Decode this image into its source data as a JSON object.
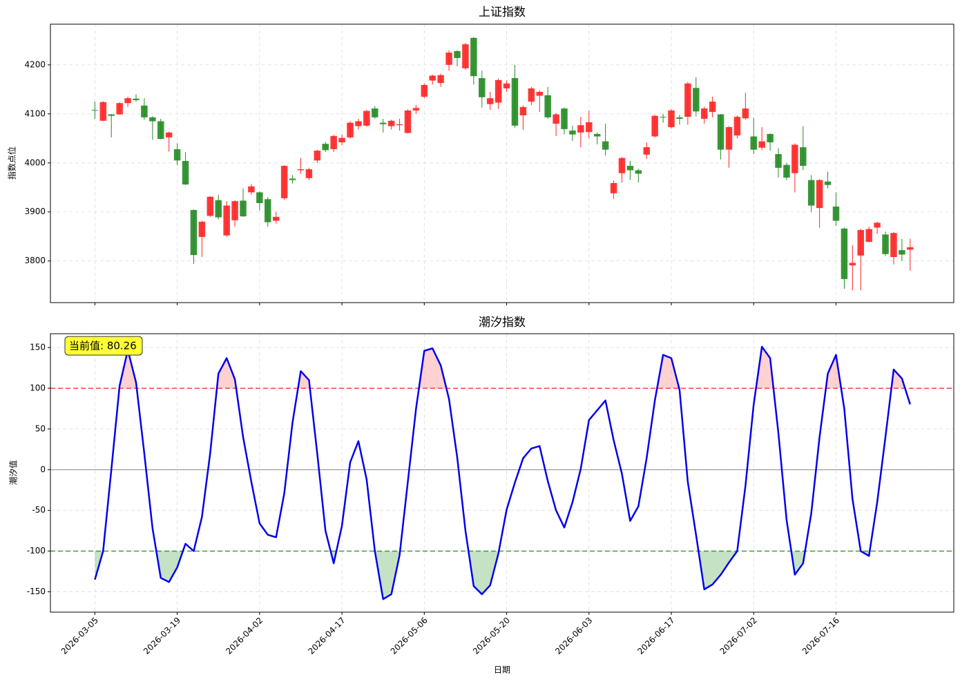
{
  "chart_data": [
    {
      "type": "candlestick",
      "title": "上证指数",
      "ylabel": "指数点位",
      "ylim": [
        3715,
        4283
      ],
      "yticks": [
        3800,
        3900,
        4000,
        4100,
        4200
      ],
      "grid": true,
      "up_color": "#ff2222",
      "down_color": "#228b22",
      "open": [
        4108,
        4086,
        4099,
        4099,
        4122,
        4131,
        4117,
        4093,
        4085,
        4052,
        4028,
        4004,
        3904,
        3849,
        3892,
        3924,
        3852,
        3883,
        3923,
        3940,
        3940,
        3926,
        3882,
        3928,
        3968,
        3985,
        3969,
        4005,
        4039,
        4028,
        4042,
        4052,
        4075,
        4076,
        4111,
        4082,
        4075,
        4077,
        4061,
        4107,
        4135,
        4168,
        4163,
        4200,
        4228,
        4193,
        4255,
        4173,
        4120,
        4123,
        4152,
        4173,
        4097,
        4125,
        4137,
        4138,
        4080,
        4111,
        4066,
        4062,
        4063,
        4059,
        4044,
        3938,
        3979,
        3994,
        3985,
        4017,
        4054,
        4094,
        4073,
        4093,
        4094,
        4153,
        4090,
        4104,
        4099,
        4027,
        4056,
        4091,
        4054,
        4031,
        4059,
        4018,
        3996,
        3979,
        4032,
        3965,
        3908,
        3962,
        3911,
        3866,
        3791,
        3811,
        3839,
        3868,
        3854,
        3808,
        3822,
        3823
      ],
      "high": [
        4125,
        4126,
        4100,
        4124,
        4135,
        4140,
        4132,
        4095,
        4090,
        4064,
        4040,
        4022,
        3905,
        3882,
        3932,
        3935,
        3922,
        3924,
        3948,
        3957,
        3942,
        3930,
        3900,
        3995,
        3975,
        4010,
        3990,
        4027,
        4043,
        4057,
        4058,
        4085,
        4090,
        4108,
        4116,
        4090,
        4088,
        4090,
        4109,
        4118,
        4162,
        4180,
        4182,
        4230,
        4230,
        4245,
        4257,
        4188,
        4145,
        4172,
        4168,
        4200,
        4117,
        4155,
        4148,
        4155,
        4102,
        4113,
        4076,
        4094,
        4107,
        4062,
        4080,
        3964,
        4012,
        4004,
        3988,
        4042,
        4098,
        4100,
        4110,
        4098,
        4165,
        4175,
        4115,
        4135,
        4100,
        4075,
        4097,
        4143,
        4092,
        4073,
        4060,
        4030,
        4000,
        4040,
        4075,
        3975,
        3967,
        3982,
        3940,
        3868,
        3832,
        3866,
        3870,
        3880,
        3860,
        3859,
        3845,
        3845
      ],
      "low": [
        4090,
        4085,
        4052,
        4098,
        4114,
        4125,
        4088,
        4047,
        4048,
        4023,
        3995,
        3955,
        3794,
        3808,
        3890,
        3885,
        3850,
        3870,
        3890,
        3935,
        3903,
        3870,
        3876,
        3925,
        3958,
        3978,
        3965,
        4000,
        4022,
        4022,
        4036,
        4050,
        4068,
        4074,
        4090,
        4062,
        4068,
        4066,
        4060,
        4100,
        4132,
        4160,
        4155,
        4188,
        4197,
        4190,
        4160,
        4113,
        4108,
        4110,
        4145,
        4072,
        4067,
        4118,
        4104,
        4090,
        4055,
        4058,
        4045,
        4032,
        4050,
        4038,
        4015,
        3927,
        3960,
        3965,
        3960,
        4008,
        4052,
        4082,
        4070,
        4078,
        4078,
        4095,
        4080,
        4093,
        4007,
        3990,
        4050,
        4088,
        4018,
        4026,
        4025,
        3970,
        3965,
        3940,
        3985,
        3900,
        3868,
        3948,
        3872,
        3743,
        3740,
        3740,
        3838,
        3855,
        3810,
        3793,
        3800,
        3780
      ],
      "close": [
        4107,
        4124,
        4096,
        4122,
        4132,
        4128,
        4093,
        4085,
        4049,
        4062,
        4005,
        3956,
        3812,
        3880,
        3931,
        3889,
        3913,
        3922,
        3891,
        3952,
        3918,
        3879,
        3890,
        3994,
        3965,
        3987,
        3987,
        4025,
        4026,
        4055,
        4051,
        4082,
        4085,
        4106,
        4093,
        4079,
        4086,
        4079,
        4107,
        4112,
        4159,
        4178,
        4179,
        4225,
        4214,
        4242,
        4177,
        4134,
        4132,
        4169,
        4162,
        4076,
        4114,
        4152,
        4145,
        4093,
        4099,
        4069,
        4058,
        4077,
        4083,
        4054,
        4027,
        3959,
        4010,
        3985,
        3978,
        4032,
        4096,
        4093,
        4107,
        4090,
        4162,
        4105,
        4111,
        4125,
        4027,
        4073,
        4094,
        4111,
        4027,
        4044,
        4042,
        3990,
        3970,
        4037,
        3994,
        3913,
        3965,
        3955,
        3882,
        3763,
        3796,
        3863,
        3865,
        3878,
        3814,
        3857,
        3813,
        3828
      ]
    },
    {
      "type": "line",
      "title": "潮汐指数",
      "xlabel": "日期",
      "ylabel": "潮汐值",
      "xlim": [
        -5.4,
        104.3
      ],
      "ylim": [
        -175,
        167
      ],
      "yticks": [
        -150,
        -100,
        -50,
        0,
        50,
        100,
        150
      ],
      "grid": true,
      "categories": [
        "2026-03-05",
        null,
        null,
        null,
        null,
        null,
        null,
        null,
        null,
        null,
        "2026-03-19",
        null,
        null,
        null,
        null,
        null,
        null,
        null,
        null,
        null,
        "2026-04-02",
        null,
        null,
        null,
        null,
        null,
        null,
        null,
        null,
        null,
        "2026-04-17",
        null,
        null,
        null,
        null,
        null,
        null,
        null,
        null,
        null,
        "2026-05-06",
        null,
        null,
        null,
        null,
        null,
        null,
        null,
        null,
        null,
        "2026-05-20",
        null,
        null,
        null,
        null,
        null,
        null,
        null,
        null,
        null,
        "2026-06-03",
        null,
        null,
        null,
        null,
        null,
        null,
        null,
        null,
        null,
        "2026-06-17",
        null,
        null,
        null,
        null,
        null,
        null,
        null,
        null,
        null,
        "2026-07-02",
        null,
        null,
        null,
        null,
        null,
        null,
        null,
        null,
        null,
        "2026-07-16",
        null,
        null,
        null,
        null,
        null,
        null,
        null,
        null,
        null
      ],
      "series": [
        {
          "color": "#0000ee",
          "values": [
            -135,
            -100,
            0,
            103,
            147,
            107,
            20,
            -72,
            -133,
            -138,
            -120,
            -91,
            -100,
            -58,
            20,
            118,
            137,
            111,
            40,
            -15,
            -66,
            -80,
            -83,
            -29,
            58,
            121,
            110,
            20,
            -75,
            -115,
            -69,
            9,
            35,
            -12,
            -100,
            -159,
            -153,
            -105,
            -15,
            75,
            146,
            149,
            128,
            87,
            15,
            -75,
            -143,
            -153,
            -142,
            -103,
            -49,
            -16,
            14,
            26,
            29,
            -14,
            -50,
            -71,
            -40,
            1,
            61,
            73,
            85,
            36,
            -5,
            -63,
            -45,
            14,
            85,
            141,
            137,
            98,
            -15,
            -80,
            -147,
            -141,
            -129,
            -114,
            -100,
            -20,
            80,
            151,
            137,
            45,
            -62,
            -129,
            -115,
            -53,
            40,
            118,
            141,
            75,
            -36,
            -100,
            -106,
            -40,
            40,
            123,
            112,
            80.26
          ]
        }
      ],
      "reference_lines": [
        {
          "value": 100,
          "color": "#ff0000",
          "style": "dashed",
          "fill": "#ff9999",
          "fill_side": "above"
        },
        {
          "value": -100,
          "color": "#008000",
          "style": "dashed",
          "fill": "#7fbf7f",
          "fill_side": "below"
        },
        {
          "value": 0,
          "color": "#999999",
          "style": "solid"
        }
      ],
      "annotation": "当前值: 80.26",
      "annotation_color": "#ffff33"
    }
  ]
}
